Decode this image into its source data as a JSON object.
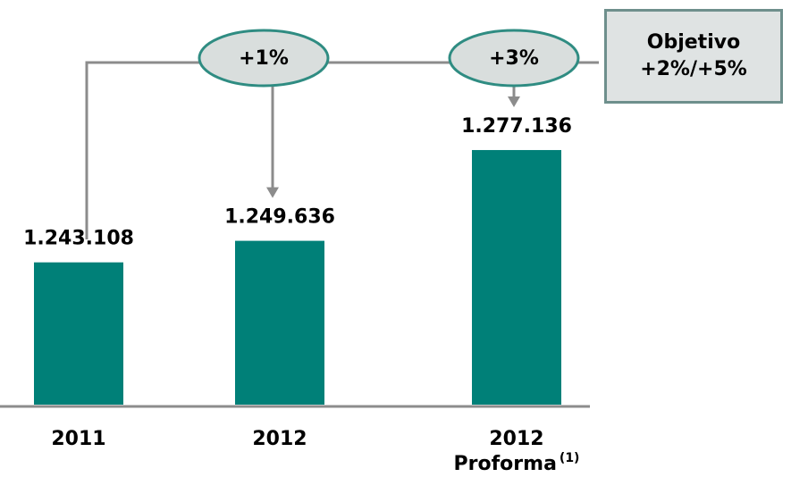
{
  "chart_data": {
    "type": "bar",
    "categories": [
      "2011",
      "2012",
      "2012\nProforma"
    ],
    "category_footnote": "(1)",
    "values": [
      1243108,
      1249636,
      1277136
    ],
    "value_labels": [
      "1.243.108",
      "1.249.636",
      "1.277.136"
    ],
    "color": "#008078",
    "ylim": [
      1200000,
      1282000
    ],
    "annotations": [
      "+1%",
      "+3%"
    ],
    "target": "Objetivo\n+2%/+5%"
  }
}
